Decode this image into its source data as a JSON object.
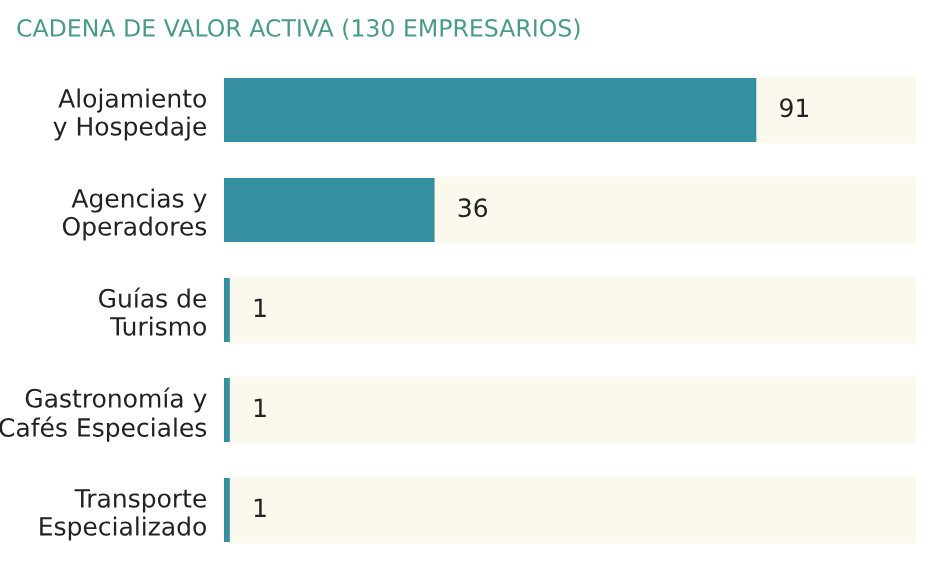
{
  "chart_data": {
    "type": "bar",
    "orientation": "horizontal",
    "data_labels": true,
    "title": "CADENA DE VALOR ACTIVA (130 EMPRESARIOS)",
    "categories": [
      "Alojamiento\ny Hospedaje",
      "Agencias y\nOperadores",
      "Guías de\nTurismo",
      "Gastronomía y\nCafés Especiales",
      "Transporte\nEspecializado"
    ],
    "values": [
      91,
      36,
      1,
      1,
      1
    ],
    "color": "#3490a0",
    "grid": false,
    "legend": false
  }
}
